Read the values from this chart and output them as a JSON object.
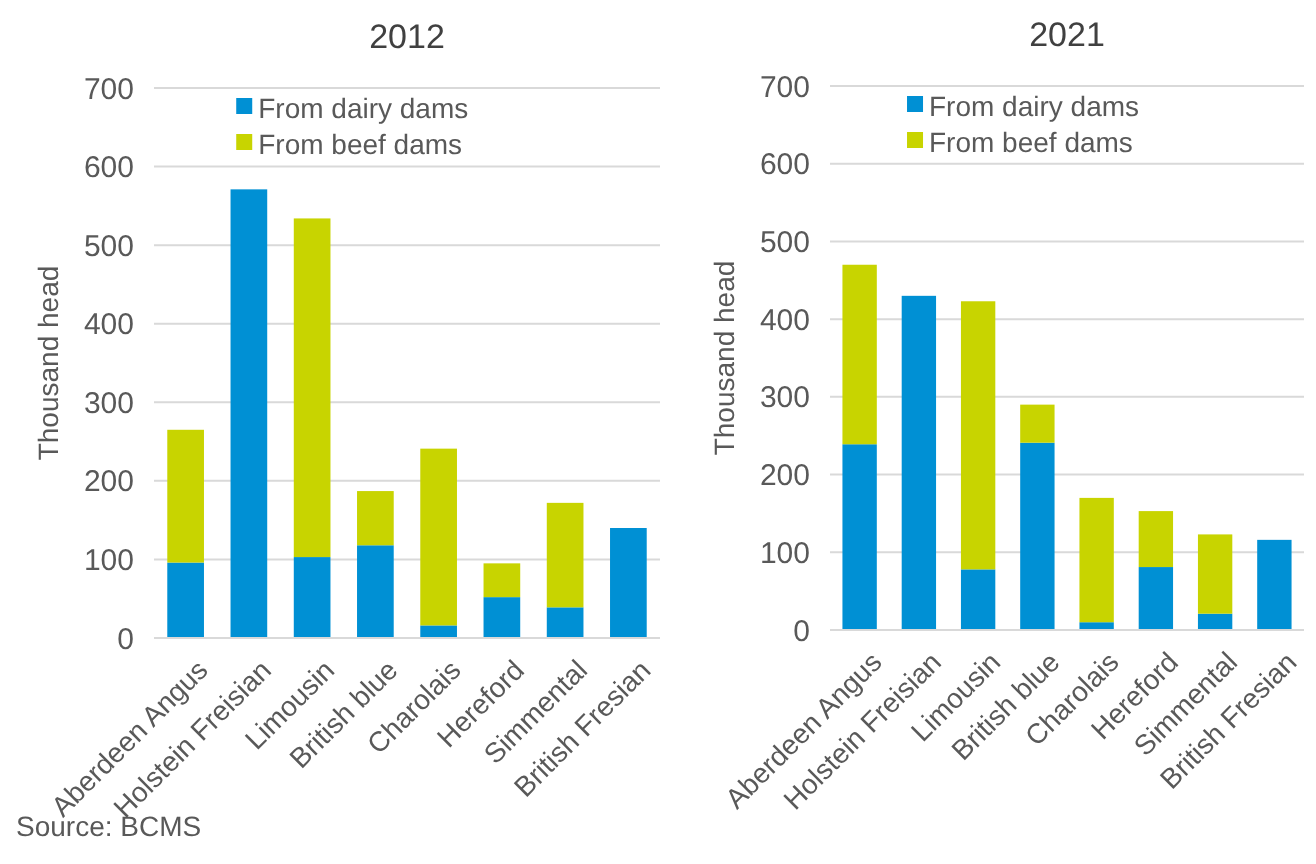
{
  "chart_data": [
    {
      "type": "bar",
      "title": "2012",
      "ylabel": "Thousand head",
      "stacked": true,
      "categories": [
        "Aberdeen Angus",
        "Holstein Freisian",
        "Limousin",
        "British blue",
        "Charolais",
        "Hereford",
        "Simmental",
        "British Fresian"
      ],
      "series": [
        {
          "name": "From dairy dams",
          "color": "#0090d4",
          "values": [
            96,
            571,
            103,
            118,
            16,
            52,
            39,
            140
          ]
        },
        {
          "name": "From beef dams",
          "color": "#c8d400",
          "values": [
            169,
            0,
            431,
            69,
            225,
            43,
            133,
            0
          ]
        }
      ],
      "ylim": [
        0,
        700
      ],
      "yticks": [
        0,
        100,
        200,
        300,
        400,
        500,
        600,
        700
      ],
      "grid": "y",
      "legend": "top",
      "annotations": [
        "Source: BCMS"
      ]
    },
    {
      "type": "bar",
      "title": "2021",
      "ylabel": "Thousand head",
      "stacked": true,
      "categories": [
        "Aberdeen Angus",
        "Holstein Freisian",
        "Limousin",
        "British blue",
        "Charolais",
        "Hereford",
        "Simmental",
        "British Fresian"
      ],
      "series": [
        {
          "name": "From dairy dams",
          "color": "#0090d4",
          "values": [
            239,
            430,
            78,
            241,
            10,
            81,
            21,
            116
          ]
        },
        {
          "name": "From beef dams",
          "color": "#c8d400",
          "values": [
            231,
            0,
            345,
            49,
            160,
            72,
            102,
            0
          ]
        }
      ],
      "ylim": [
        0,
        700
      ],
      "yticks": [
        0,
        100,
        200,
        300,
        400,
        500,
        600,
        700
      ],
      "grid": "y",
      "legend": "top"
    }
  ]
}
